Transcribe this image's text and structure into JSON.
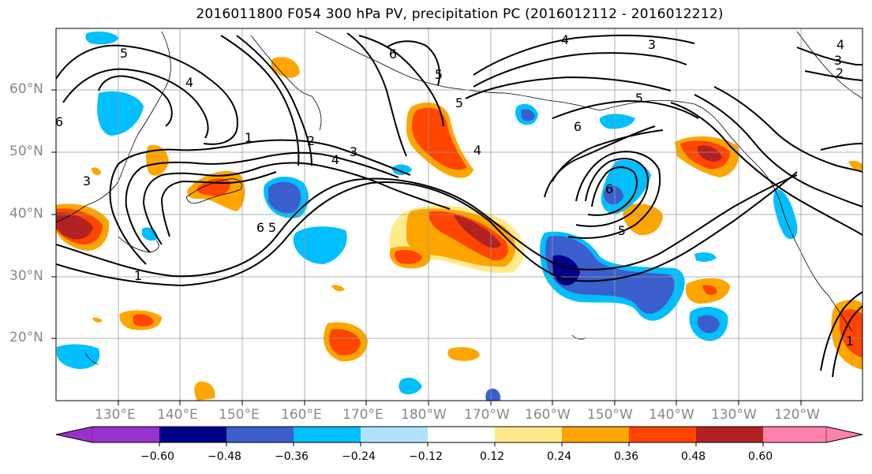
{
  "title": "2016011800 F054 300 hPa PV, precipitation PC (2016012112 - 2016012212)",
  "lat_labels": [
    "60°N",
    "50°N",
    "40°N",
    "30°N",
    "20°N"
  ],
  "lon_labels": [
    "130°E",
    "140°E",
    "150°E",
    "160°E",
    "170°E",
    "180°W",
    "170°W",
    "160°W",
    "150°W",
    "140°W",
    "130°W",
    "120°W"
  ],
  "colorbar": {
    "ticks": [
      "−0.60",
      "−0.48",
      "−0.36",
      "−0.24",
      "−0.12",
      "0.12",
      "0.24",
      "0.36",
      "0.48",
      "0.60"
    ],
    "colors": [
      "#9932cc",
      "#00008b",
      "#3a5fcd",
      "#00bfff",
      "#b0e2ff",
      "#ffffff",
      "#ffeb8c",
      "#ffa500",
      "#ff4500",
      "#b22222",
      "#ff82ab"
    ]
  },
  "contour_labels": [
    "5",
    "4",
    "1",
    "2",
    "3",
    "4",
    "6",
    "5",
    "5",
    "4",
    "4",
    "3",
    "3",
    "2",
    "5",
    "6",
    "4",
    "6",
    "5",
    "1",
    "3",
    "1",
    "6",
    "5",
    "6"
  ]
}
